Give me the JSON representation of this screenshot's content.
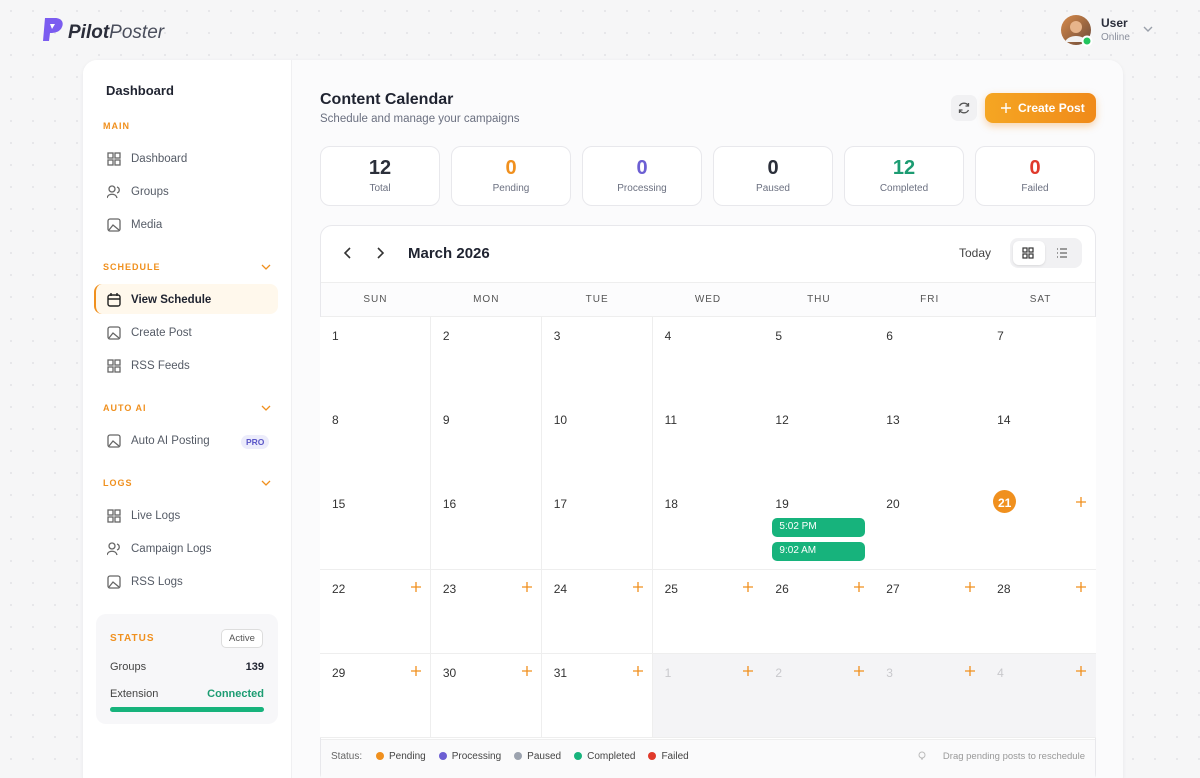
{
  "header": {
    "logo_pilot": "Pilot",
    "logo_poster": "Poster",
    "user_name": "User",
    "user_status": "Online"
  },
  "sidebar": {
    "title": "Dashboard",
    "sections": [
      {
        "label": "MAIN",
        "items": [
          {
            "label": "Dashboard"
          },
          {
            "label": "Groups"
          },
          {
            "label": "Media"
          }
        ]
      },
      {
        "label": "SCHEDULE",
        "collapsible": true,
        "items": [
          {
            "label": "View Schedule",
            "active": true
          },
          {
            "label": "Create Post"
          },
          {
            "label": "RSS Feeds"
          }
        ]
      },
      {
        "label": "AUTO AI",
        "collapsible": true,
        "items": [
          {
            "label": "Auto AI Posting",
            "badge": "PRO"
          }
        ]
      },
      {
        "label": "LOGS",
        "collapsible": true,
        "items": [
          {
            "label": "Live Logs"
          },
          {
            "label": "Campaign Logs"
          },
          {
            "label": "RSS Logs"
          }
        ]
      }
    ],
    "status": {
      "label": "STATUS",
      "badge": "Active",
      "rows": [
        {
          "label": "Groups",
          "value": 139
        },
        {
          "label": "Extension",
          "value": "Connected"
        }
      ]
    }
  },
  "main": {
    "title": "Content Calendar",
    "subtitle": "Schedule and manage your campaigns",
    "create_button": "Create Post"
  },
  "stats": [
    {
      "value": 12,
      "label": "Total",
      "color": "#2b2f3a"
    },
    {
      "value": 0,
      "label": "Pending",
      "color": "#f0901e"
    },
    {
      "value": 0,
      "label": "Processing",
      "color": "#6c5fd3"
    },
    {
      "value": 0,
      "label": "Paused",
      "color": "#2b2f3a"
    },
    {
      "value": 12,
      "label": "Completed",
      "color": "#1c9c72"
    },
    {
      "value": 0,
      "label": "Failed",
      "color": "#e0392b"
    }
  ],
  "calendar": {
    "month": "March 2026",
    "today_button": "Today",
    "weekdays": [
      "SUN",
      "MON",
      "TUE",
      "WED",
      "THU",
      "FRI",
      "SAT"
    ],
    "weeks": [
      [
        {
          "day": 1
        },
        {
          "day": 2
        },
        {
          "day": 3
        },
        {
          "day": 4
        },
        {
          "day": 5
        },
        {
          "day": 6
        },
        {
          "day": 7
        }
      ],
      [
        {
          "day": 8
        },
        {
          "day": 9
        },
        {
          "day": 10
        },
        {
          "day": 11
        },
        {
          "day": 12
        },
        {
          "day": 13
        },
        {
          "day": 14
        }
      ],
      [
        {
          "day": 15
        },
        {
          "day": 16
        },
        {
          "day": 17
        },
        {
          "day": 18
        },
        {
          "day": 19,
          "events": [
            "5:02 PM",
            "9:02 AM"
          ]
        },
        {
          "day": 20
        },
        {
          "day": 21,
          "today": true
        }
      ],
      [
        {
          "day": 22
        },
        {
          "day": 23
        },
        {
          "day": 24
        },
        {
          "day": 25
        },
        {
          "day": 26
        },
        {
          "day": 27
        },
        {
          "day": 28
        }
      ],
      [
        {
          "day": 29
        },
        {
          "day": 30
        },
        {
          "day": 31
        },
        {
          "day": 1,
          "other_month": true
        },
        {
          "day": 2,
          "other_month": true
        },
        {
          "day": 3,
          "other_month": true
        },
        {
          "day": 4,
          "other_month": true
        }
      ]
    ],
    "event_color": "#17b37c",
    "legend_label": "Status:",
    "legend": [
      {
        "name": "Pending",
        "color": "#f0901e"
      },
      {
        "name": "Processing",
        "color": "#6c5fd3"
      },
      {
        "name": "Paused",
        "color": "#9ca3af"
      },
      {
        "name": "Completed",
        "color": "#17b37c"
      },
      {
        "name": "Failed",
        "color": "#e0392b"
      }
    ],
    "hint": "Drag pending posts to reschedule"
  }
}
